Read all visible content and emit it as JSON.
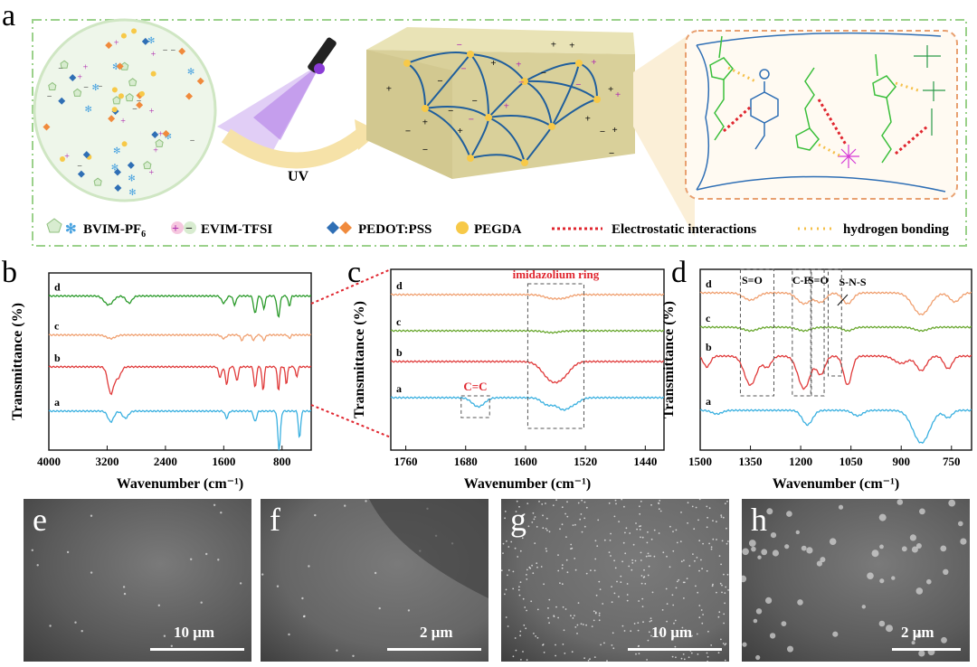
{
  "panel_a": {
    "letter": "a",
    "uv_label": "UV",
    "legend": [
      {
        "label": "BVIM-PF",
        "sub": "6"
      },
      {
        "label": "EVIM-TFSI"
      },
      {
        "label": "PEDOT:PSS"
      },
      {
        "label": "PEGDA"
      },
      {
        "label": "Electrostatic interactions"
      },
      {
        "label": "hydrogen bonding"
      }
    ],
    "colors": {
      "frame": "#9bd18b",
      "pegda": "#f7c948",
      "pedot_blue": "#2f6fb5",
      "pedot_orange": "#f08a3c",
      "elec": "#e0262f",
      "hbond": "#f5c04a",
      "green_chain": "#3bbf3b"
    }
  },
  "chart_data": [
    {
      "panel": "b",
      "type": "line",
      "title": "",
      "xlabel": "Wavenumber (cm⁻¹)",
      "ylabel": "Transmittance (%)",
      "xlim": [
        4000,
        400
      ],
      "xticks": [
        "4000",
        "3200",
        "2400",
        "1600",
        "800"
      ],
      "series": [
        {
          "name": "d",
          "color": "#2a9a2a",
          "base": 0.87,
          "peaks": [
            [
              3180,
              0.05,
              60
            ],
            [
              2900,
              0.04,
              40
            ],
            [
              1600,
              0.04,
              30
            ],
            [
              1450,
              0.05,
              20
            ],
            [
              1170,
              0.1,
              20
            ],
            [
              1050,
              0.07,
              18
            ],
            [
              850,
              0.12,
              20
            ],
            [
              700,
              0.06,
              15
            ]
          ]
        },
        {
          "name": "c",
          "color": "#f0a070",
          "base": 0.65,
          "peaks": [
            [
              3150,
              0.02,
              60
            ],
            [
              1600,
              0.02,
              30
            ],
            [
              1350,
              0.03,
              20
            ],
            [
              1190,
              0.03,
              20
            ],
            [
              1050,
              0.03,
              20
            ],
            [
              700,
              0.02,
              15
            ]
          ]
        },
        {
          "name": "b",
          "color": "#e03a3a",
          "base": 0.47,
          "peaks": [
            [
              3150,
              0.15,
              40
            ],
            [
              3050,
              0.06,
              40
            ],
            [
              1650,
              0.06,
              20
            ],
            [
              1560,
              0.1,
              18
            ],
            [
              1420,
              0.08,
              18
            ],
            [
              1170,
              0.12,
              16
            ],
            [
              1060,
              0.14,
              14
            ],
            [
              850,
              0.14,
              14
            ],
            [
              740,
              0.1,
              14
            ],
            [
              600,
              0.06,
              14
            ]
          ]
        },
        {
          "name": "a",
          "color": "#3ab0e0",
          "base": 0.22,
          "peaks": [
            [
              3150,
              0.06,
              40
            ],
            [
              2950,
              0.04,
              40
            ],
            [
              1560,
              0.04,
              20
            ],
            [
              1170,
              0.06,
              20
            ],
            [
              840,
              0.22,
              18
            ],
            [
              560,
              0.16,
              15
            ]
          ]
        }
      ]
    },
    {
      "panel": "c",
      "type": "line",
      "title": "",
      "xlabel": "Wavenumber (cm⁻¹)",
      "ylabel": "Transmittance (%)",
      "xlim": [
        1780,
        1415
      ],
      "xticks": [
        "1760",
        "1680",
        "1600",
        "1520",
        "1440"
      ],
      "annotations": [
        {
          "text": "imidazolium ring"
        },
        {
          "text": "C=C"
        }
      ],
      "series": [
        {
          "name": "d",
          "color": "#f0a070",
          "base": 0.86,
          "peaks": [
            [
              1565,
              0.02,
              10
            ],
            [
              1548,
              0.015,
              8
            ]
          ]
        },
        {
          "name": "c",
          "color": "#6aa830",
          "base": 0.66,
          "peaks": [
            [
              1565,
              0.01,
              10
            ]
          ]
        },
        {
          "name": "b",
          "color": "#e03a3a",
          "base": 0.49,
          "peaks": [
            [
              1565,
              0.1,
              12
            ],
            [
              1548,
              0.05,
              10
            ]
          ]
        },
        {
          "name": "a",
          "color": "#3ab0e0",
          "base": 0.29,
          "peaks": [
            [
              1663,
              0.05,
              8
            ],
            [
              1570,
              0.04,
              8
            ],
            [
              1550,
              0.06,
              8
            ],
            [
              1535,
              0.03,
              8
            ]
          ]
        }
      ]
    },
    {
      "panel": "d",
      "type": "line",
      "title": "",
      "xlabel": "Wavenumber (cm⁻¹)",
      "ylabel": "Transmittance (%)",
      "xlim": [
        1500,
        690
      ],
      "xticks": [
        "1500",
        "1350",
        "1200",
        "1050",
        "900",
        "750"
      ],
      "annotations": [
        {
          "text": "S=O"
        },
        {
          "text": "C-F"
        },
        {
          "text": "S=O"
        },
        {
          "text": "S-N-S"
        }
      ],
      "series": [
        {
          "name": "d",
          "color": "#f0a070",
          "base": 0.87,
          "peaks": [
            [
              1350,
              0.04,
              20
            ],
            [
              1190,
              0.06,
              20
            ],
            [
              1140,
              0.05,
              15
            ],
            [
              1060,
              0.06,
              15
            ],
            [
              840,
              0.12,
              25
            ],
            [
              740,
              0.05,
              15
            ]
          ]
        },
        {
          "name": "c",
          "color": "#6aa830",
          "base": 0.68,
          "peaks": [
            [
              1350,
              0.02,
              20
            ],
            [
              1190,
              0.02,
              20
            ],
            [
              1060,
              0.02,
              15
            ],
            [
              840,
              0.02,
              20
            ]
          ]
        },
        {
          "name": "b",
          "color": "#e03a3a",
          "base": 0.52,
          "peaks": [
            [
              1480,
              0.06,
              10
            ],
            [
              1350,
              0.16,
              18
            ],
            [
              1300,
              0.06,
              12
            ],
            [
              1190,
              0.18,
              18
            ],
            [
              1140,
              0.1,
              12
            ],
            [
              1060,
              0.16,
              12
            ],
            [
              900,
              0.04,
              20
            ],
            [
              840,
              0.08,
              15
            ],
            [
              760,
              0.07,
              12
            ]
          ]
        },
        {
          "name": "a",
          "color": "#3ab0e0",
          "base": 0.22,
          "peaks": [
            [
              1450,
              0.02,
              15
            ],
            [
              1180,
              0.08,
              15
            ],
            [
              1030,
              0.03,
              15
            ],
            [
              840,
              0.18,
              25
            ],
            [
              760,
              0.04,
              12
            ]
          ]
        }
      ]
    }
  ],
  "panel_b": {
    "letter": "b"
  },
  "panel_c": {
    "letter": "c"
  },
  "panel_d": {
    "letter": "d"
  },
  "sem": [
    {
      "letter": "e",
      "scale": "10 μm",
      "tone": "#5a5a5a"
    },
    {
      "letter": "f",
      "scale": "2 μm",
      "tone": "#666666"
    },
    {
      "letter": "g",
      "scale": "10 μm",
      "tone": "#6a6a6a"
    },
    {
      "letter": "h",
      "scale": "2 μm",
      "tone": "#5c5c5c"
    }
  ]
}
